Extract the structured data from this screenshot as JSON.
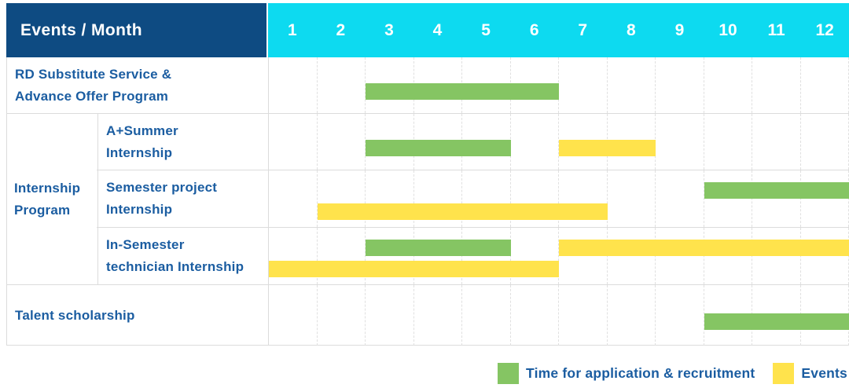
{
  "chart_data": {
    "type": "table",
    "subtype": "gantt-schedule",
    "title": "Events / Month",
    "months": [
      "1",
      "2",
      "3",
      "4",
      "5",
      "6",
      "7",
      "8",
      "9",
      "10",
      "11",
      "12"
    ],
    "month_range": [
      1,
      12
    ],
    "rows": [
      {
        "group": "",
        "label": "RD Substitute Service & Advance Offer Program",
        "label_lines": [
          "RD Substitute Service &",
          "Advance Offer Program"
        ],
        "bars": [
          {
            "series": "Time for application & recruitment",
            "color_key": "green",
            "start_month": 3,
            "end_month": 6,
            "lane": "mid"
          }
        ]
      },
      {
        "group": "Internship Program",
        "label": "A+Summer Internship",
        "label_lines": [
          "A+Summer",
          "Internship"
        ],
        "bars": [
          {
            "series": "Time for application & recruitment",
            "color_key": "green",
            "start_month": 3,
            "end_month": 5,
            "lane": "mid"
          },
          {
            "series": "Events",
            "color_key": "yellow",
            "start_month": 7,
            "end_month": 8,
            "lane": "mid"
          }
        ]
      },
      {
        "group": "Internship Program",
        "label": "Semester project Internship",
        "label_lines": [
          "Semester project",
          "Internship"
        ],
        "bars": [
          {
            "series": "Time for application & recruitment",
            "color_key": "green",
            "start_month": 10,
            "end_month": 12,
            "lane": "upper"
          },
          {
            "series": "Events",
            "color_key": "yellow",
            "start_month": 2,
            "end_month": 7,
            "lane": "lower"
          }
        ]
      },
      {
        "group": "Internship Program",
        "label": "In-Semester technician Internship",
        "label_lines": [
          "In-Semester",
          "technician Internship"
        ],
        "bars": [
          {
            "series": "Time for application & recruitment",
            "color_key": "green",
            "start_month": 3,
            "end_month": 5,
            "lane": "upper"
          },
          {
            "series": "Events",
            "color_key": "yellow",
            "start_month": 7,
            "end_month": 12,
            "lane": "upper"
          },
          {
            "series": "Events",
            "color_key": "yellow",
            "start_month": 1,
            "end_month": 6,
            "lane": "lower"
          }
        ]
      },
      {
        "group": "",
        "label": "Talent scholarship",
        "label_lines": [
          "Talent scholarship"
        ],
        "bars": [
          {
            "series": "Time for application & recruitment",
            "color_key": "green",
            "start_month": 10,
            "end_month": 12,
            "lane": "mid"
          }
        ]
      }
    ],
    "group_label_lines": [
      "Internship",
      "Program"
    ],
    "legend": [
      {
        "color_key": "green",
        "label": "Time for application & recruitment"
      },
      {
        "color_key": "yellow",
        "label": "Events"
      }
    ]
  },
  "colors": {
    "header_label_bg": "#0e4b82",
    "header_months_bg": "#0ddaf0",
    "header_text": "#ffffff",
    "bar_green": "#85c563",
    "bar_yellow": "#ffe34c",
    "label_text": "#1b5da1",
    "grid_line": "#dcdcdc",
    "month_line": "#e0e0e0"
  }
}
